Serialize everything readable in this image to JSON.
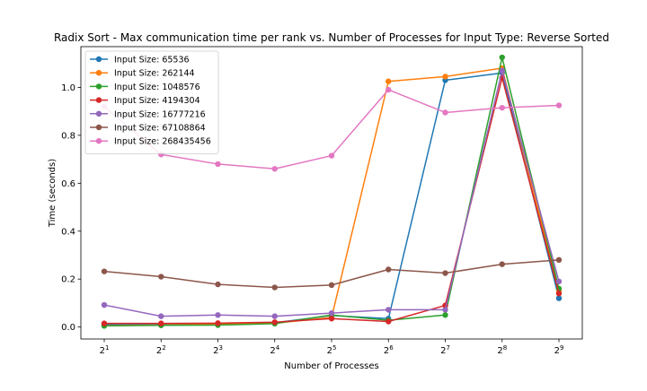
{
  "chart_data": {
    "type": "line",
    "title": "Radix Sort - Max communication time per rank vs. Number of Processes for Input Type: Reverse Sorted",
    "xlabel": "Number of Processes",
    "ylabel": "Time (seconds)",
    "x": [
      2,
      4,
      8,
      16,
      32,
      64,
      128,
      256,
      512
    ],
    "x_tick_labels": [
      {
        "base": "2",
        "exp": "1"
      },
      {
        "base": "2",
        "exp": "2"
      },
      {
        "base": "2",
        "exp": "3"
      },
      {
        "base": "2",
        "exp": "4"
      },
      {
        "base": "2",
        "exp": "5"
      },
      {
        "base": "2",
        "exp": "6"
      },
      {
        "base": "2",
        "exp": "7"
      },
      {
        "base": "2",
        "exp": "8"
      },
      {
        "base": "2",
        "exp": "9"
      }
    ],
    "xscale": "log2",
    "y_ticks": [
      "0.0",
      "0.2",
      "0.4",
      "0.6",
      "0.8",
      "1.0"
    ],
    "ylim": [
      -0.05,
      1.17
    ],
    "grid": false,
    "legend_position": "upper-left",
    "series": [
      {
        "name": "Input Size: 65536",
        "color": "#1f77b4",
        "values": [
          0.01,
          0.01,
          0.012,
          0.018,
          0.048,
          0.035,
          1.03,
          1.06,
          0.12
        ]
      },
      {
        "name": "Input Size: 262144",
        "color": "#ff7f0e",
        "values": [
          0.006,
          0.008,
          0.012,
          0.016,
          0.04,
          1.025,
          1.045,
          1.08,
          0.15
        ]
      },
      {
        "name": "Input Size: 1048576",
        "color": "#2ca02c",
        "values": [
          0.005,
          0.007,
          0.008,
          0.014,
          0.05,
          0.028,
          0.05,
          1.125,
          0.16
        ]
      },
      {
        "name": "Input Size: 4194304",
        "color": "#d62728",
        "values": [
          0.015,
          0.015,
          0.016,
          0.02,
          0.035,
          0.023,
          0.09,
          1.04,
          0.14
        ]
      },
      {
        "name": "Input Size: 16777216",
        "color": "#9467bd",
        "values": [
          0.092,
          0.045,
          0.05,
          0.045,
          0.058,
          0.072,
          0.072,
          1.07,
          0.19
        ]
      },
      {
        "name": "Input Size: 67108864",
        "color": "#8c564b",
        "values": [
          0.232,
          0.21,
          0.178,
          0.165,
          0.175,
          0.24,
          0.225,
          0.262,
          0.28
        ]
      },
      {
        "name": "Input Size: 268435456",
        "color": "#e377c2",
        "values": [
          0.92,
          0.72,
          0.68,
          0.66,
          0.715,
          0.99,
          0.895,
          0.915,
          0.925
        ]
      }
    ]
  }
}
